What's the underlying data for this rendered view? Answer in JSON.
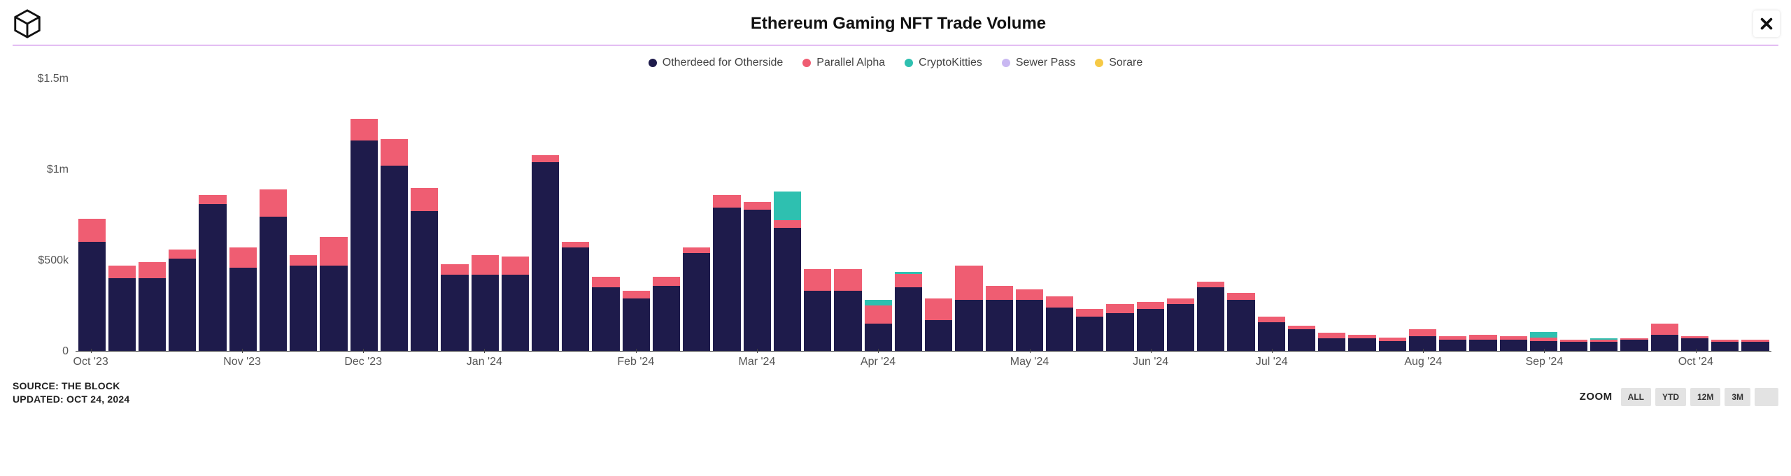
{
  "title": "Ethereum Gaming NFT Trade Volume",
  "rule_color": "#b95ae0",
  "colors": {
    "background": "#ffffff",
    "text": "#222222",
    "axis": "#555555"
  },
  "series": [
    {
      "key": "otherdeed",
      "label": "Otherdeed for Otherside",
      "color": "#1e1b4b"
    },
    {
      "key": "parallel",
      "label": "Parallel Alpha",
      "color": "#ef5d72"
    },
    {
      "key": "crypto",
      "label": "CryptoKitties",
      "color": "#2ec0b0"
    },
    {
      "key": "sewer",
      "label": "Sewer Pass",
      "color": "#c9b8f2"
    },
    {
      "key": "sorare",
      "label": "Sorare",
      "color": "#f6c945"
    }
  ],
  "y_axis": {
    "max": 1500000,
    "ticks": [
      {
        "value": 0,
        "label": "0"
      },
      {
        "value": 500000,
        "label": "$500k"
      },
      {
        "value": 1000000,
        "label": "$1m"
      },
      {
        "value": 1500000,
        "label": "$1.5m"
      }
    ]
  },
  "x_axis": {
    "ticks": [
      {
        "index": 0,
        "label": "Oct '23"
      },
      {
        "index": 5,
        "label": "Nov '23"
      },
      {
        "index": 9,
        "label": "Dec '23"
      },
      {
        "index": 13,
        "label": "Jan '24"
      },
      {
        "index": 18,
        "label": "Feb '24"
      },
      {
        "index": 22,
        "label": "Mar '24"
      },
      {
        "index": 26,
        "label": "Apr '24"
      },
      {
        "index": 31,
        "label": "May '24"
      },
      {
        "index": 35,
        "label": "Jun '24"
      },
      {
        "index": 39,
        "label": "Jul '24"
      },
      {
        "index": 44,
        "label": "Aug '24"
      },
      {
        "index": 48,
        "label": "Sep '24"
      },
      {
        "index": 53,
        "label": "Oct '24"
      }
    ]
  },
  "bars": [
    {
      "otherdeed": 600000,
      "parallel": 130000,
      "crypto": 0,
      "sewer": 0,
      "sorare": 0
    },
    {
      "otherdeed": 400000,
      "parallel": 70000,
      "crypto": 0,
      "sewer": 0,
      "sorare": 0
    },
    {
      "otherdeed": 400000,
      "parallel": 90000,
      "crypto": 0,
      "sewer": 0,
      "sorare": 0
    },
    {
      "otherdeed": 510000,
      "parallel": 50000,
      "crypto": 0,
      "sewer": 0,
      "sorare": 0
    },
    {
      "otherdeed": 810000,
      "parallel": 50000,
      "crypto": 0,
      "sewer": 0,
      "sorare": 0
    },
    {
      "otherdeed": 460000,
      "parallel": 110000,
      "crypto": 0,
      "sewer": 0,
      "sorare": 0
    },
    {
      "otherdeed": 740000,
      "parallel": 150000,
      "crypto": 0,
      "sewer": 0,
      "sorare": 0
    },
    {
      "otherdeed": 470000,
      "parallel": 60000,
      "crypto": 0,
      "sewer": 0,
      "sorare": 0
    },
    {
      "otherdeed": 470000,
      "parallel": 160000,
      "crypto": 0,
      "sewer": 0,
      "sorare": 0
    },
    {
      "otherdeed": 1160000,
      "parallel": 120000,
      "crypto": 0,
      "sewer": 0,
      "sorare": 0
    },
    {
      "otherdeed": 1020000,
      "parallel": 150000,
      "crypto": 0,
      "sewer": 0,
      "sorare": 0
    },
    {
      "otherdeed": 770000,
      "parallel": 130000,
      "crypto": 0,
      "sewer": 0,
      "sorare": 0
    },
    {
      "otherdeed": 420000,
      "parallel": 60000,
      "crypto": 0,
      "sewer": 0,
      "sorare": 0
    },
    {
      "otherdeed": 420000,
      "parallel": 110000,
      "crypto": 0,
      "sewer": 0,
      "sorare": 0
    },
    {
      "otherdeed": 420000,
      "parallel": 100000,
      "crypto": 0,
      "sewer": 0,
      "sorare": 0
    },
    {
      "otherdeed": 1040000,
      "parallel": 40000,
      "crypto": 0,
      "sewer": 0,
      "sorare": 0
    },
    {
      "otherdeed": 570000,
      "parallel": 30000,
      "crypto": 0,
      "sewer": 0,
      "sorare": 0
    },
    {
      "otherdeed": 350000,
      "parallel": 60000,
      "crypto": 0,
      "sewer": 0,
      "sorare": 0
    },
    {
      "otherdeed": 290000,
      "parallel": 40000,
      "crypto": 0,
      "sewer": 0,
      "sorare": 0
    },
    {
      "otherdeed": 360000,
      "parallel": 50000,
      "crypto": 0,
      "sewer": 0,
      "sorare": 0
    },
    {
      "otherdeed": 540000,
      "parallel": 30000,
      "crypto": 0,
      "sewer": 0,
      "sorare": 0
    },
    {
      "otherdeed": 790000,
      "parallel": 70000,
      "crypto": 0,
      "sewer": 0,
      "sorare": 0
    },
    {
      "otherdeed": 780000,
      "parallel": 40000,
      "crypto": 0,
      "sewer": 0,
      "sorare": 0
    },
    {
      "otherdeed": 680000,
      "parallel": 40000,
      "crypto": 160000,
      "sewer": 0,
      "sorare": 0
    },
    {
      "otherdeed": 330000,
      "parallel": 120000,
      "crypto": 0,
      "sewer": 0,
      "sorare": 0
    },
    {
      "otherdeed": 330000,
      "parallel": 120000,
      "crypto": 0,
      "sewer": 0,
      "sorare": 0
    },
    {
      "otherdeed": 150000,
      "parallel": 100000,
      "crypto": 30000,
      "sewer": 0,
      "sorare": 0
    },
    {
      "otherdeed": 350000,
      "parallel": 75000,
      "crypto": 10000,
      "sewer": 0,
      "sorare": 0
    },
    {
      "otherdeed": 170000,
      "parallel": 120000,
      "crypto": 0,
      "sewer": 0,
      "sorare": 0
    },
    {
      "otherdeed": 280000,
      "parallel": 190000,
      "crypto": 0,
      "sewer": 0,
      "sorare": 0
    },
    {
      "otherdeed": 280000,
      "parallel": 80000,
      "crypto": 0,
      "sewer": 0,
      "sorare": 0
    },
    {
      "otherdeed": 280000,
      "parallel": 60000,
      "crypto": 0,
      "sewer": 0,
      "sorare": 0
    },
    {
      "otherdeed": 240000,
      "parallel": 60000,
      "crypto": 0,
      "sewer": 0,
      "sorare": 0
    },
    {
      "otherdeed": 190000,
      "parallel": 40000,
      "crypto": 0,
      "sewer": 0,
      "sorare": 0
    },
    {
      "otherdeed": 210000,
      "parallel": 50000,
      "crypto": 0,
      "sewer": 0,
      "sorare": 0
    },
    {
      "otherdeed": 230000,
      "parallel": 40000,
      "crypto": 0,
      "sewer": 0,
      "sorare": 0
    },
    {
      "otherdeed": 260000,
      "parallel": 30000,
      "crypto": 0,
      "sewer": 0,
      "sorare": 0
    },
    {
      "otherdeed": 350000,
      "parallel": 30000,
      "crypto": 0,
      "sewer": 0,
      "sorare": 0
    },
    {
      "otherdeed": 280000,
      "parallel": 40000,
      "crypto": 0,
      "sewer": 0,
      "sorare": 0
    },
    {
      "otherdeed": 160000,
      "parallel": 30000,
      "crypto": 0,
      "sewer": 0,
      "sorare": 0
    },
    {
      "otherdeed": 120000,
      "parallel": 20000,
      "crypto": 0,
      "sewer": 0,
      "sorare": 0
    },
    {
      "otherdeed": 70000,
      "parallel": 30000,
      "crypto": 0,
      "sewer": 0,
      "sorare": 0
    },
    {
      "otherdeed": 70000,
      "parallel": 20000,
      "crypto": 0,
      "sewer": 0,
      "sorare": 0
    },
    {
      "otherdeed": 55000,
      "parallel": 20000,
      "crypto": 0,
      "sewer": 0,
      "sorare": 0
    },
    {
      "otherdeed": 80000,
      "parallel": 40000,
      "crypto": 0,
      "sewer": 0,
      "sorare": 0
    },
    {
      "otherdeed": 60000,
      "parallel": 20000,
      "crypto": 0,
      "sewer": 0,
      "sorare": 0
    },
    {
      "otherdeed": 60000,
      "parallel": 30000,
      "crypto": 0,
      "sewer": 0,
      "sorare": 0
    },
    {
      "otherdeed": 60000,
      "parallel": 20000,
      "crypto": 0,
      "sewer": 0,
      "sorare": 0
    },
    {
      "otherdeed": 55000,
      "parallel": 20000,
      "crypto": 30000,
      "sewer": 0,
      "sorare": 0
    },
    {
      "otherdeed": 50000,
      "parallel": 10000,
      "crypto": 0,
      "sewer": 0,
      "sorare": 0
    },
    {
      "otherdeed": 50000,
      "parallel": 10000,
      "crypto": 10000,
      "sewer": 0,
      "sorare": 0
    },
    {
      "otherdeed": 60000,
      "parallel": 10000,
      "crypto": 0,
      "sewer": 0,
      "sorare": 0
    },
    {
      "otherdeed": 90000,
      "parallel": 60000,
      "crypto": 0,
      "sewer": 0,
      "sorare": 0
    },
    {
      "otherdeed": 70000,
      "parallel": 10000,
      "crypto": 0,
      "sewer": 0,
      "sorare": 0
    },
    {
      "otherdeed": 50000,
      "parallel": 10000,
      "crypto": 0,
      "sewer": 0,
      "sorare": 0
    },
    {
      "otherdeed": 50000,
      "parallel": 10000,
      "crypto": 0,
      "sewer": 0,
      "sorare": 0
    }
  ],
  "footer": {
    "source": "SOURCE: THE BLOCK",
    "updated": "UPDATED: OCT 24, 2024"
  },
  "zoom": {
    "label": "ZOOM",
    "buttons": [
      "ALL",
      "YTD",
      "12M",
      "3M",
      ""
    ]
  }
}
